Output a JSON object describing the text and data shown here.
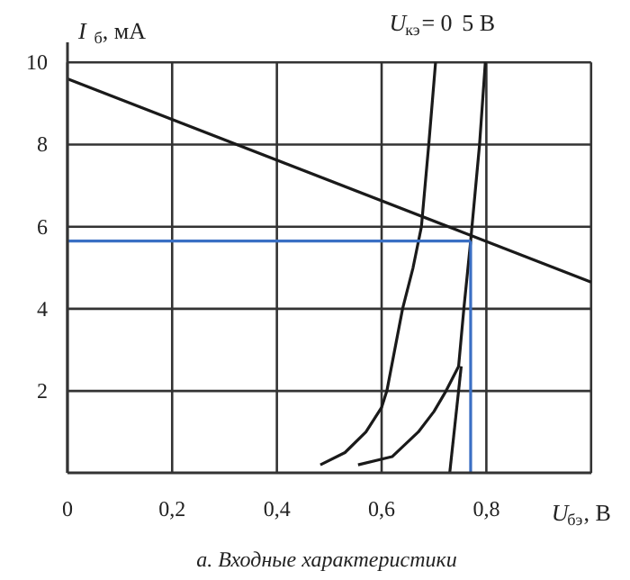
{
  "chart_data": {
    "type": "line",
    "xlabel": "U$_{бэ}$, В",
    "ylabel": "I$_{б}$, мА",
    "annotations": [
      "а.  Входные характеристики"
    ],
    "xlim": [
      0,
      1.0
    ],
    "ylim": [
      0,
      10.5
    ],
    "xticks": [
      {
        "value": 0,
        "label": "0"
      },
      {
        "value": 0.2,
        "label": "0,2"
      },
      {
        "value": 0.4,
        "label": "0,4"
      },
      {
        "value": 0.6,
        "label": "0,6"
      },
      {
        "value": 0.8,
        "label": "0,8"
      },
      {
        "value": 1.0,
        "label": null
      }
    ],
    "yticks": [
      2,
      4,
      6,
      8,
      10
    ],
    "grid": true,
    "marker": "none",
    "line_style": "solid",
    "series": [
      {
        "name": "U$_{кэ}$= 0",
        "color": "#1a1a1a",
        "x": [
          0.483,
          0.53,
          0.57,
          0.6,
          0.61,
          0.64,
          0.66,
          0.676,
          0.69,
          0.703
        ],
        "values": [
          0.2,
          0.5,
          1.0,
          1.6,
          2.0,
          4.0,
          5.0,
          6.0,
          8.0,
          10.0
        ]
      },
      {
        "name": "5 В",
        "color": "#1a1a1a",
        "x": [
          0.555,
          0.62,
          0.67,
          0.7,
          0.723,
          0.747,
          0.757,
          0.77,
          0.787,
          0.798
        ],
        "values": [
          0.2,
          0.4,
          1.0,
          1.5,
          2.0,
          2.6,
          4.0,
          5.65,
          8.0,
          10.0
        ]
      },
      {
        "color": "#1a1a1a",
        "x": [
          0.73,
          0.752
        ],
        "values": [
          0,
          2.6
        ]
      },
      {
        "color": "#1a1a1a",
        "x": [
          0,
          1.0
        ],
        "values": [
          9.6,
          4.65
        ]
      },
      {
        "color": "#3a6fc4",
        "x": [
          0,
          0.77
        ],
        "values": [
          5.65,
          5.65
        ]
      },
      {
        "color": "#3a6fc4",
        "x": [
          0.77,
          0.77
        ],
        "values": [
          0,
          5.65
        ]
      }
    ]
  }
}
